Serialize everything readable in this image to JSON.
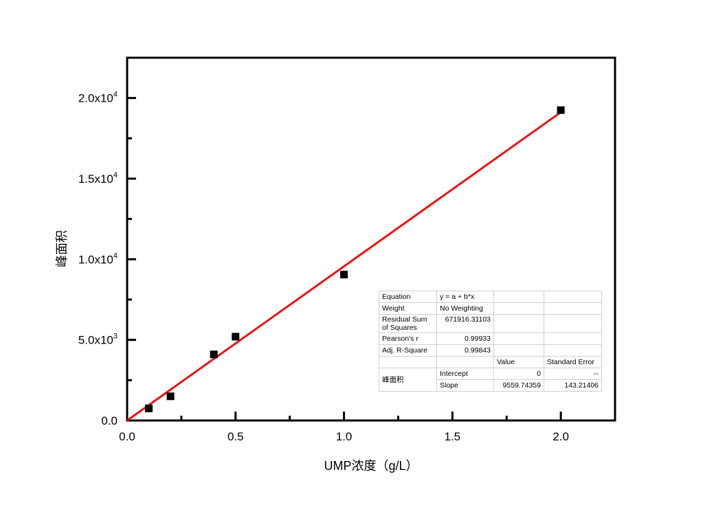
{
  "chart_data": {
    "type": "scatter",
    "xlabel": "UMP浓度（g/L）",
    "ylabel": "峰面积",
    "xlim": [
      0.0,
      2.25
    ],
    "ylim": [
      0,
      22500
    ],
    "x_ticks": [
      {
        "value": 0.0,
        "label": "0.0"
      },
      {
        "value": 0.5,
        "label": "0.5"
      },
      {
        "value": 1.0,
        "label": "1.0"
      },
      {
        "value": 1.5,
        "label": "1.5"
      },
      {
        "value": 2.0,
        "label": "2.0"
      }
    ],
    "x_minor_ticks": [
      0.25,
      0.75,
      1.25,
      1.75
    ],
    "y_ticks": [
      {
        "value": 0,
        "base": "0.0",
        "exp": ""
      },
      {
        "value": 5000,
        "base": "5.0x10",
        "exp": "3"
      },
      {
        "value": 10000,
        "base": "1.0x10",
        "exp": "4"
      },
      {
        "value": 15000,
        "base": "1.5x10",
        "exp": "4"
      },
      {
        "value": 20000,
        "base": "2.0x10",
        "exp": "4"
      }
    ],
    "y_minor_ticks": [
      2500,
      7500,
      12500,
      17500
    ],
    "series": [
      {
        "x": [
          0.1,
          0.2,
          0.4,
          0.5,
          1.0,
          2.0
        ],
        "y": [
          750,
          1500,
          4100,
          5200,
          9050,
          19250
        ],
        "color": "#000000",
        "marker": "square"
      }
    ],
    "fit_line": {
      "intercept": 0,
      "slope": 9559.74359,
      "x_range": [
        0.0,
        2.0
      ],
      "color": "#ee1111"
    },
    "grid": false,
    "fit_table": {
      "equation_label": "Equation",
      "equation_value": "y = a + b*x",
      "weight_label": "Weight",
      "weight_value": "No Weighting",
      "rss_label": "Residual Sum of Squares",
      "rss_value": "671916.31103",
      "pearson_label": "Pearson's r",
      "pearson_value": "0.99933",
      "adjr2_label": "Adj. R-Square",
      "adjr2_value": "0.99843",
      "value_header": "Value",
      "stderr_header": "Standard Error",
      "group_label": "峰面积",
      "intercept_label": "Intercept",
      "intercept_value": "0",
      "intercept_error": "--",
      "slope_label": "Slope",
      "slope_value": "9559.74359",
      "slope_error": "143.21406"
    }
  }
}
